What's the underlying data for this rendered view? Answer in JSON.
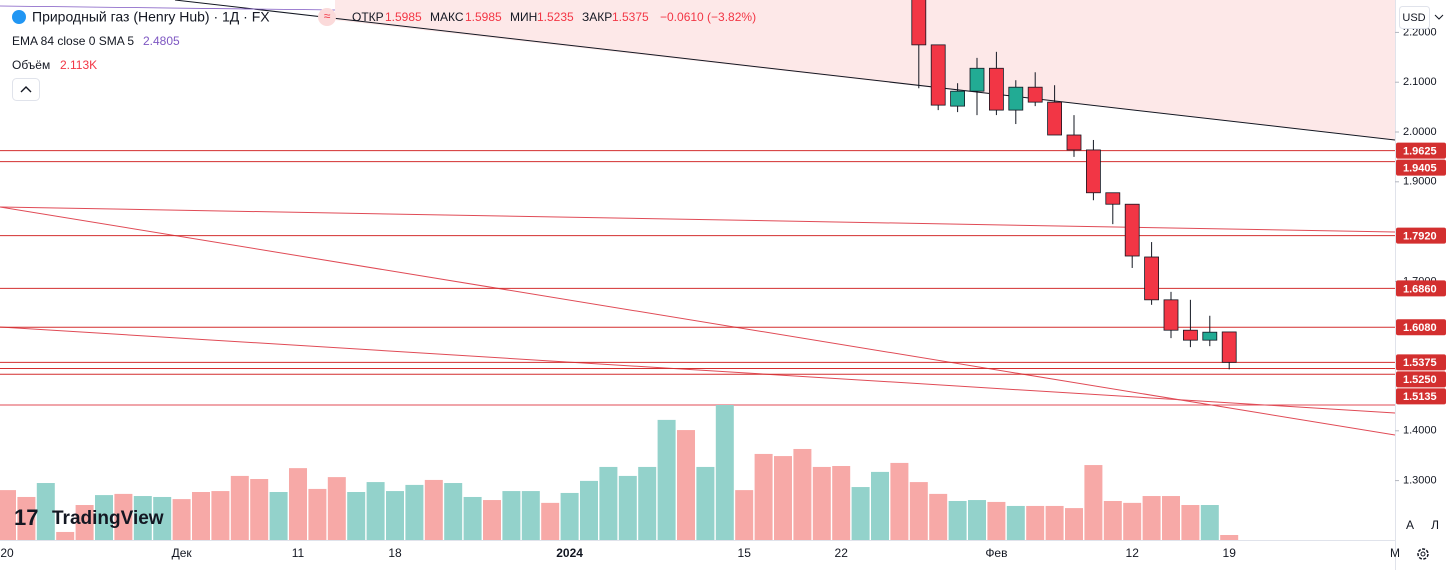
{
  "header": {
    "title": "Природный газ (Henry Hub) · 1Д · FX",
    "open_label": "ОТКР",
    "high_label": "МАКС",
    "low_label": "МИН",
    "close_label": "ЗАКР",
    "change": "−0.0610 (−3.82%)",
    "indicator": "EMA 84 close 0 SMA 5",
    "indicator_value": "2.4805",
    "volume_label": "Объём",
    "volume_value": "2.113K",
    "currency": "USD",
    "auto_button": "A",
    "log_button": "Л",
    "brand": "TradingView"
  },
  "chart_data": {
    "type": "candlestick",
    "categories": [
      "20",
      null,
      null,
      null,
      null,
      null,
      null,
      null,
      null,
      "Дек",
      null,
      null,
      null,
      null,
      null,
      "11",
      null,
      null,
      null,
      null,
      "18",
      null,
      null,
      null,
      null,
      null,
      null,
      null,
      null,
      "2024",
      null,
      null,
      null,
      null,
      null,
      null,
      null,
      null,
      "15",
      null,
      null,
      null,
      null,
      "22",
      null,
      null,
      null,
      null,
      null,
      null,
      null,
      "Фев",
      null,
      null,
      null,
      null,
      null,
      null,
      "12",
      null,
      null,
      null,
      null,
      "19"
    ],
    "x_axis_next_label": "М",
    "open": [
      null,
      null,
      null,
      null,
      null,
      null,
      null,
      null,
      null,
      null,
      null,
      null,
      null,
      null,
      null,
      null,
      null,
      null,
      null,
      null,
      null,
      null,
      null,
      null,
      null,
      null,
      null,
      null,
      null,
      null,
      null,
      null,
      null,
      null,
      null,
      null,
      null,
      null,
      null,
      null,
      null,
      null,
      null,
      null,
      null,
      null,
      null,
      2.33,
      2.175,
      2.052,
      2.082,
      2.128,
      2.044,
      2.09,
      2.06,
      1.994,
      1.964,
      1.878,
      1.855,
      1.749,
      1.663,
      1.602,
      1.582,
      1.5985
    ],
    "high": [
      null,
      null,
      null,
      null,
      null,
      null,
      null,
      null,
      null,
      null,
      null,
      null,
      null,
      null,
      null,
      null,
      null,
      null,
      null,
      null,
      null,
      null,
      null,
      null,
      null,
      null,
      null,
      null,
      null,
      null,
      null,
      null,
      null,
      null,
      null,
      null,
      null,
      null,
      null,
      null,
      null,
      null,
      null,
      null,
      null,
      null,
      null,
      2.36,
      2.175,
      2.098,
      2.149,
      2.161,
      2.104,
      2.12,
      2.094,
      2.034,
      1.984,
      1.878,
      1.855,
      1.779,
      1.679,
      1.663,
      1.631,
      1.5985
    ],
    "low": [
      null,
      null,
      null,
      null,
      null,
      null,
      null,
      null,
      null,
      null,
      null,
      null,
      null,
      null,
      null,
      null,
      null,
      null,
      null,
      null,
      null,
      null,
      null,
      null,
      null,
      null,
      null,
      null,
      null,
      null,
      null,
      null,
      null,
      null,
      null,
      null,
      null,
      null,
      null,
      null,
      null,
      null,
      null,
      null,
      null,
      null,
      null,
      2.088,
      2.044,
      2.04,
      2.034,
      2.034,
      2.016,
      2.052,
      1.994,
      1.95,
      1.863,
      1.815,
      1.727,
      1.653,
      1.586,
      1.568,
      1.57,
      1.5235
    ],
    "close": [
      null,
      null,
      null,
      null,
      null,
      null,
      null,
      null,
      null,
      null,
      null,
      null,
      null,
      null,
      null,
      null,
      null,
      null,
      null,
      null,
      null,
      null,
      null,
      null,
      null,
      null,
      null,
      null,
      null,
      null,
      null,
      null,
      null,
      null,
      null,
      null,
      null,
      null,
      null,
      null,
      null,
      null,
      null,
      null,
      null,
      null,
      null,
      2.175,
      2.054,
      2.082,
      2.128,
      2.044,
      2.09,
      2.06,
      1.994,
      1.964,
      1.878,
      1.855,
      1.751,
      1.663,
      1.602,
      1.582,
      1.598,
      1.5375
    ],
    "volume": [
      21100,
      18200,
      24100,
      3400,
      14800,
      19000,
      19500,
      18600,
      18200,
      17300,
      20300,
      20700,
      27100,
      25800,
      20300,
      30400,
      21600,
      26600,
      20300,
      24500,
      20700,
      23300,
      25400,
      24100,
      18200,
      16900,
      20700,
      20700,
      15700,
      19900,
      25000,
      30900,
      27100,
      30900,
      50800,
      46500,
      30900,
      57100,
      21100,
      36400,
      35500,
      38500,
      30900,
      31300,
      22400,
      28800,
      32600,
      24500,
      19500,
      16500,
      16900,
      16100,
      14400,
      14400,
      14400,
      13500,
      31700,
      16500,
      15700,
      18600,
      18600,
      14800,
      14800,
      2113
    ],
    "volume_colors": [
      "#f7a9a7",
      "#f7a9a7",
      "#93d2cb",
      "#f7a9a7",
      "#f7a9a7",
      "#93d2cb",
      "#f7a9a7",
      "#93d2cb",
      "#93d2cb",
      "#f7a9a7",
      "#f7a9a7",
      "#f7a9a7",
      "#f7a9a7",
      "#f7a9a7",
      "#93d2cb",
      "#f7a9a7",
      "#f7a9a7",
      "#f7a9a7",
      "#93d2cb",
      "#93d2cb",
      "#93d2cb",
      "#93d2cb",
      "#f7a9a7",
      "#93d2cb",
      "#93d2cb",
      "#f7a9a7",
      "#93d2cb",
      "#93d2cb",
      "#f7a9a7",
      "#93d2cb",
      "#93d2cb",
      "#93d2cb",
      "#93d2cb",
      "#93d2cb",
      "#93d2cb",
      "#f7a9a7",
      "#93d2cb",
      "#93d2cb",
      "#f7a9a7",
      "#f7a9a7",
      "#f7a9a7",
      "#f7a9a7",
      "#f7a9a7",
      "#f7a9a7",
      "#93d2cb",
      "#93d2cb",
      "#f7a9a7",
      "#f7a9a7",
      "#f7a9a7",
      "#93d2cb",
      "#93d2cb",
      "#f7a9a7",
      "#93d2cb",
      "#f7a9a7",
      "#f7a9a7",
      "#f7a9a7",
      "#f7a9a7",
      "#f7a9a7",
      "#f7a9a7",
      "#f7a9a7",
      "#f7a9a7",
      "#f7a9a7",
      "#93d2cb",
      "#f7a9a7"
    ],
    "up_color": "#22ab94",
    "down_color": "#f23645",
    "level_color": "#d32f2f",
    "levels": [
      1.9625,
      1.9405,
      {
        "value": 1.792,
        "label": "1.7920"
      },
      {
        "value": 1.686,
        "label": "1.6860"
      },
      {
        "value": 1.608,
        "label": "1.6080"
      },
      1.5375,
      {
        "value": 1.525,
        "label": "1.5250"
      },
      1.5135
    ],
    "ylim": [
      1.1807,
      2.2651
    ],
    "yticks": [
      {
        "value": 2.2,
        "label": "2.2000"
      },
      {
        "value": 2.1,
        "label": "2.1000"
      },
      {
        "value": 2.0,
        "label": "2.0000"
      },
      {
        "value": 1.9,
        "label": "1.9000"
      },
      {
        "value": 1.7,
        "label": "1.7000"
      },
      {
        "value": 1.4,
        "label": "1.4000"
      },
      {
        "value": 1.3,
        "label": "1.3000"
      }
    ]
  }
}
